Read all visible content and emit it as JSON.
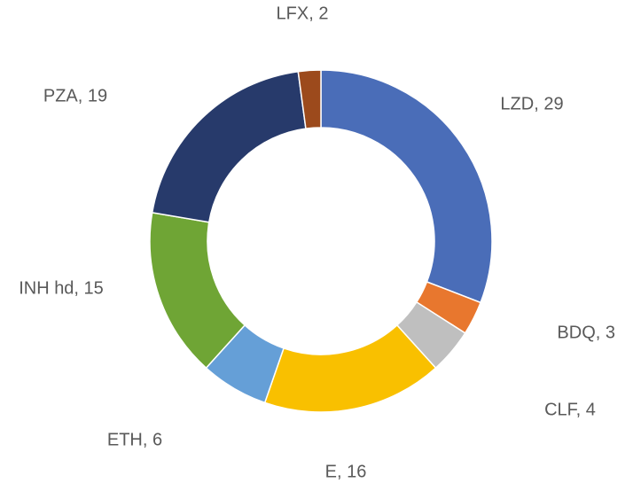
{
  "chart_data": {
    "type": "pie",
    "subtype": "doughnut",
    "title": "",
    "legend": "none",
    "slices": [
      {
        "label": "LZD",
        "value": 29,
        "color": "#4a6db8",
        "data_label": "LZD, 29"
      },
      {
        "label": "BDQ",
        "value": 3,
        "color": "#e8772e",
        "data_label": "BDQ, 3"
      },
      {
        "label": "CLF",
        "value": 4,
        "color": "#bfbfbf",
        "data_label": "CLF, 4"
      },
      {
        "label": "E",
        "value": 16,
        "color": "#f9c000",
        "data_label": "E, 16"
      },
      {
        "label": "ETH",
        "value": 6,
        "color": "#659fd7",
        "data_label": "ETH, 6"
      },
      {
        "label": "INH hd",
        "value": 15,
        "color": "#6fa535",
        "data_label": "INH hd, 15"
      },
      {
        "label": "PZA",
        "value": 19,
        "color": "#273a6b",
        "data_label": "PZA, 19"
      },
      {
        "label": "LFX",
        "value": 2,
        "color": "#9c4a1c",
        "data_label": "LFX, 2"
      }
    ]
  }
}
